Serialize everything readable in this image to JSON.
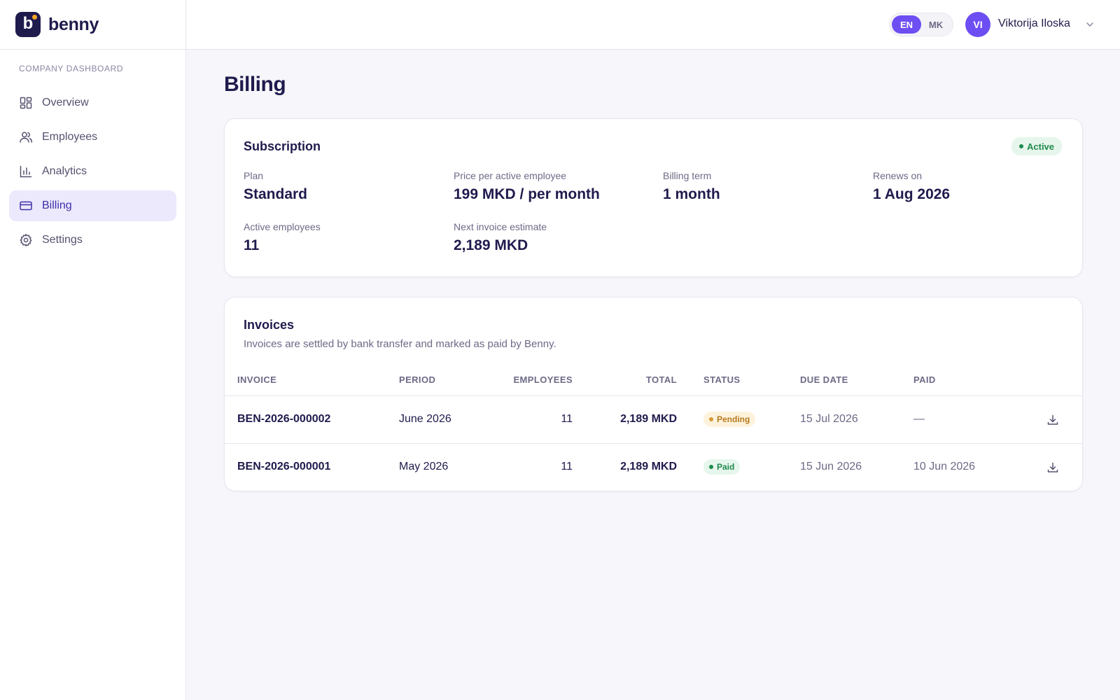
{
  "brand": {
    "name": "benny",
    "letter": "b",
    "accent": "#f5a524",
    "dark": "#1f1b4d",
    "primary": "#6d4ef2"
  },
  "sidebar": {
    "section_label": "COMPANY DASHBOARD",
    "items": [
      {
        "label": "Overview",
        "icon": "grid-icon",
        "active": false
      },
      {
        "label": "Employees",
        "icon": "users-icon",
        "active": false
      },
      {
        "label": "Analytics",
        "icon": "bar-chart-icon",
        "active": false
      },
      {
        "label": "Billing",
        "icon": "credit-card-icon",
        "active": true
      },
      {
        "label": "Settings",
        "icon": "gear-icon",
        "active": false
      }
    ]
  },
  "topbar": {
    "languages": [
      {
        "label": "EN",
        "active": true
      },
      {
        "label": "MK",
        "active": false
      }
    ],
    "user": {
      "initials": "VI",
      "name": "Viktorija Iloska"
    }
  },
  "page": {
    "title": "Billing"
  },
  "subscription": {
    "title": "Subscription",
    "status": {
      "label": "Active",
      "color": "#1f8a4c",
      "bg": "#e6f6ec"
    },
    "fields": [
      {
        "label": "Plan",
        "value": "Standard"
      },
      {
        "label": "Price per active employee",
        "value": "199 MKD / per month"
      },
      {
        "label": "Billing term",
        "value": "1 month"
      },
      {
        "label": "Renews on",
        "value": "1 Aug 2026"
      },
      {
        "label": "Active employees",
        "value": "11"
      },
      {
        "label": "Next invoice estimate",
        "value": "2,189 MKD"
      }
    ]
  },
  "invoices": {
    "title": "Invoices",
    "description": "Invoices are settled by bank transfer and marked as paid by Benny.",
    "columns": [
      "INVOICE",
      "PERIOD",
      "EMPLOYEES",
      "TOTAL",
      "STATUS",
      "DUE DATE",
      "PAID"
    ],
    "rows": [
      {
        "invoice": "BEN-2026-000002",
        "period": "June 2026",
        "employees": "11",
        "total": "2,189 MKD",
        "status": "Pending",
        "status_color": "#b7791f",
        "status_bg": "#fdf3dc",
        "due": "15 Jul 2026",
        "paid": "—"
      },
      {
        "invoice": "BEN-2026-000001",
        "period": "May 2026",
        "employees": "11",
        "total": "2,189 MKD",
        "status": "Paid",
        "status_color": "#1f8a4c",
        "status_bg": "#e6f6ec",
        "due": "15 Jun 2026",
        "paid": "10 Jun 2026"
      }
    ]
  }
}
